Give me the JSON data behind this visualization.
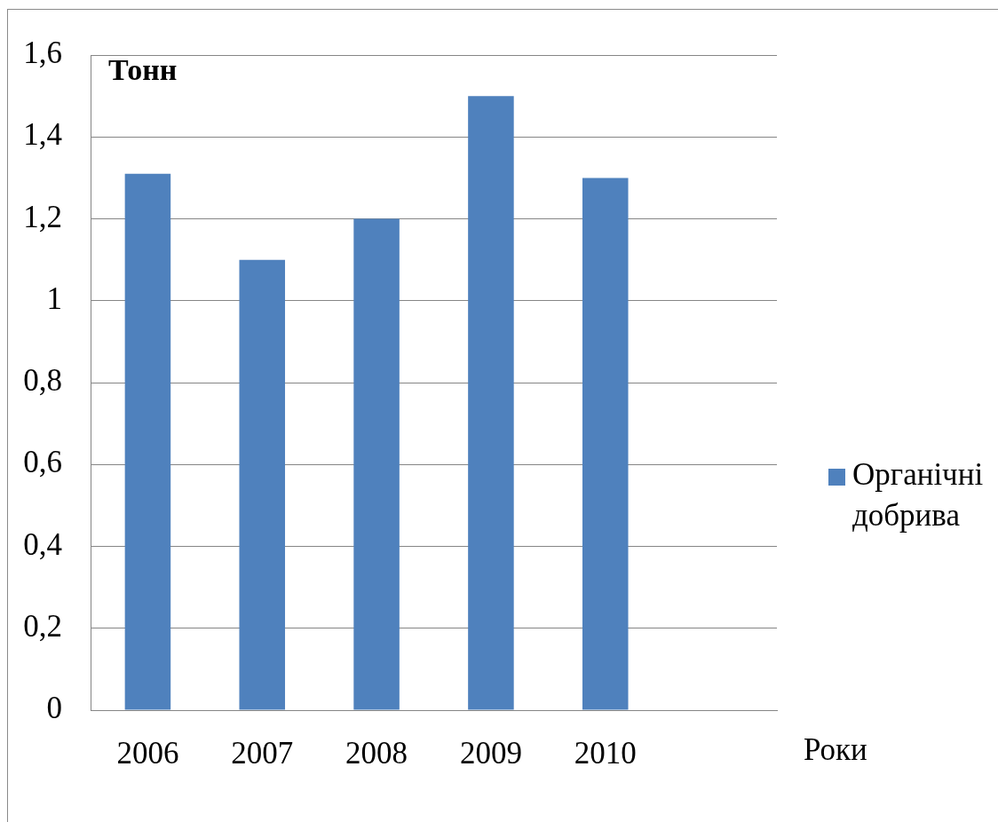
{
  "chart_data": {
    "type": "bar",
    "ylabel": "Тонн",
    "xlabel": "Роки",
    "categories": [
      "2006",
      "2007",
      "2008",
      "2009",
      "2010",
      null
    ],
    "series": [
      {
        "name": "Органічні добрива",
        "color": "#4f81bd",
        "values": [
          1.31,
          1.1,
          1.2,
          1.5,
          1.3,
          null
        ]
      }
    ],
    "ylim": [
      0,
      1.6
    ],
    "yticks": [
      0,
      {
        "value": 0.2,
        "label": "0,2"
      },
      {
        "value": 0.4,
        "label": "0,4"
      },
      {
        "value": 0.6,
        "label": "0,6"
      },
      {
        "value": 0.8,
        "label": "0,8"
      },
      1,
      {
        "value": 1.2,
        "label": "1,2"
      },
      {
        "value": 1.4,
        "label": "1,4"
      },
      {
        "value": 1.6,
        "label": "1,6"
      }
    ],
    "grid": "y",
    "legend": "right"
  }
}
